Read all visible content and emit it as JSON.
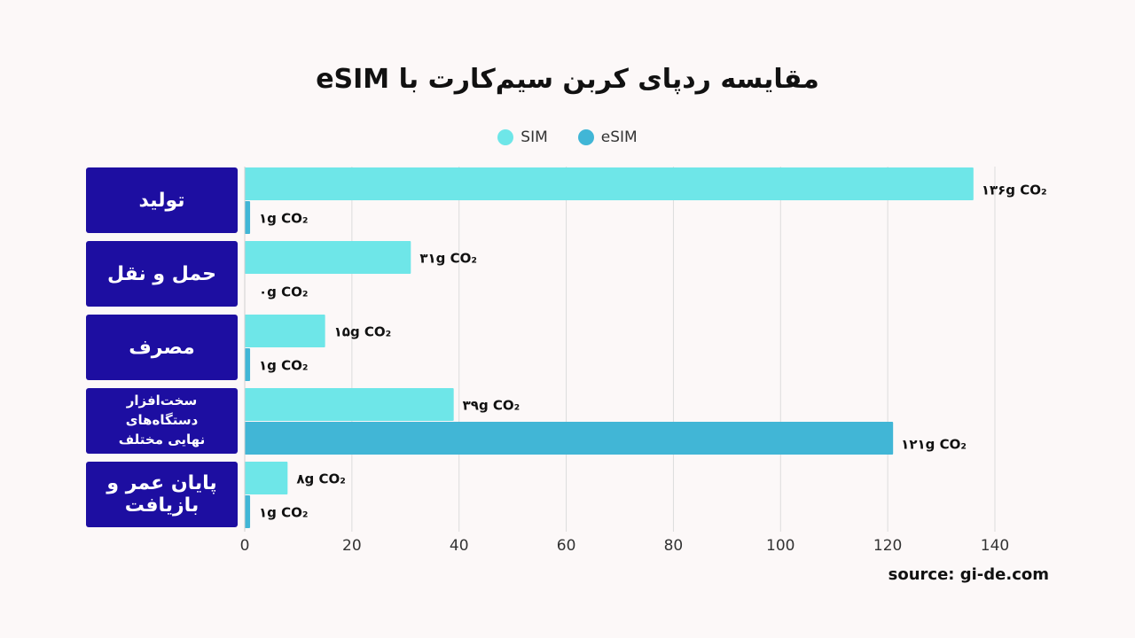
{
  "chart_data": {
    "type": "bar",
    "orientation": "horizontal",
    "title": "مقایسه ردپای کربن سیم‌کارت با eSIM",
    "categories": [
      "تولید",
      "حمل و نقل",
      "مصرف",
      "سخت‌افزار دستگاه‌های نهایی مختلف",
      "پایان عمر و بازیافت"
    ],
    "category_lines": [
      [
        "تولید"
      ],
      [
        "حمل و نقل"
      ],
      [
        "مصرف"
      ],
      [
        "سخت‌افزار دستگاه‌های",
        "نهایی مختلف"
      ],
      [
        "پایان عمر و بازیافت"
      ]
    ],
    "series": [
      {
        "name": "SIM",
        "color": "#6ee6e8",
        "values": [
          136,
          31,
          15,
          39,
          8
        ],
        "labels": [
          "۱۳۶g CO₂",
          "۳۱g CO₂",
          "۱۵g CO₂",
          "۳۹g CO₂",
          "۸g CO₂"
        ]
      },
      {
        "name": "eSIM",
        "color": "#41b6d6",
        "values": [
          1,
          0,
          1,
          121,
          1
        ],
        "labels": [
          "۱g CO₂",
          "۰g CO₂",
          "۱g CO₂",
          "۱۲۱g CO₂",
          "۱g CO₂"
        ]
      }
    ],
    "xlim": [
      0,
      140
    ],
    "xticks": [
      "0",
      "20",
      "40",
      "60",
      "80",
      "100",
      "120",
      "140"
    ],
    "grid": true,
    "legend_position": "top-center",
    "source": "source: gi-de.com"
  }
}
